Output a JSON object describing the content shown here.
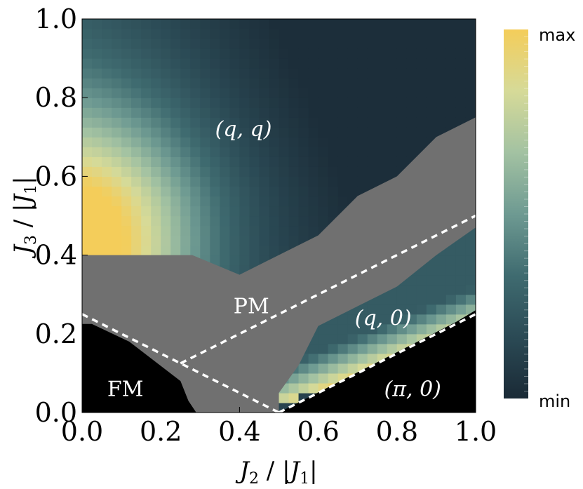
{
  "chart_data": {
    "type": "heatmap",
    "title": "",
    "xlabel": {
      "main": "J",
      "sub": "2",
      "sep": " / |",
      "main2": "J",
      "sub2": "1",
      "end": "|"
    },
    "ylabel": {
      "main": "J",
      "sub": "3",
      "sep": " / |",
      "main2": "J",
      "sub2": "1",
      "end": "|"
    },
    "xlim": [
      0.0,
      1.0
    ],
    "ylim": [
      0.0,
      1.0
    ],
    "x_ticks": [
      {
        "value": 0.0,
        "label": "0.0"
      },
      {
        "value": 0.2,
        "label": "0.2"
      },
      {
        "value": 0.4,
        "label": "0.4"
      },
      {
        "value": 0.6,
        "label": "0.6"
      },
      {
        "value": 0.8,
        "label": "0.8"
      },
      {
        "value": 1.0,
        "label": "1.0"
      }
    ],
    "y_ticks": [
      {
        "value": 0.0,
        "label": "0.0"
      },
      {
        "value": 0.2,
        "label": "0.2"
      },
      {
        "value": 0.4,
        "label": "0.4"
      },
      {
        "value": 0.6,
        "label": "0.6"
      },
      {
        "value": 0.8,
        "label": "0.8"
      },
      {
        "value": 1.0,
        "label": "1.0"
      }
    ],
    "colorbar": {
      "max_label": "max",
      "min_label": "min",
      "colors": [
        "#1a2a36",
        "#2b4a55",
        "#3f6b70",
        "#6e9a92",
        "#a3c2a2",
        "#d6da98",
        "#f4cd5a"
      ]
    },
    "heatmap_grid": {
      "dx": 0.025,
      "dy": 0.025
    },
    "pm_color": "#707070",
    "regions": [
      {
        "name": "PM",
        "label": "PM",
        "color": "#707070",
        "boundary": [
          [
            0,
            0
          ],
          [
            0,
            0.4
          ],
          [
            0.28,
            0.4
          ],
          [
            0.4,
            0.35
          ],
          [
            0.6,
            0.45
          ],
          [
            0.7,
            0.55
          ],
          [
            0.8,
            0.6
          ],
          [
            0.9,
            0.7
          ],
          [
            1.0,
            0.75
          ],
          [
            1.0,
            0.47
          ],
          [
            0.9,
            0.4
          ],
          [
            0.8,
            0.32
          ],
          [
            0.7,
            0.27
          ],
          [
            0.6,
            0.22
          ],
          [
            0.55,
            0.12
          ],
          [
            0.5,
            0.05
          ],
          [
            0.5,
            0
          ],
          [
            0,
            0
          ]
        ]
      },
      {
        "name": "FM",
        "label": "FM",
        "color": "#000000",
        "boundary": [
          [
            0,
            0
          ],
          [
            0,
            0.225
          ],
          [
            0.025,
            0.225
          ],
          [
            0.12,
            0.18
          ],
          [
            0.25,
            0.08
          ],
          [
            0.27,
            0.03
          ],
          [
            0.29,
            0.0
          ]
        ]
      },
      {
        "name": "pi0",
        "label": "(π, 0)",
        "color": "#000000",
        "boundary": [
          [
            0.5,
            0
          ],
          [
            1.0,
            0
          ],
          [
            1.0,
            0.26
          ],
          [
            0.95,
            0.23
          ],
          [
            0.5,
            0.0
          ]
        ]
      }
    ],
    "region_labels": [
      {
        "text": "(q, q)",
        "x": 0.41,
        "y": 0.72
      },
      {
        "text": "PM",
        "x": 0.43,
        "y": 0.27
      },
      {
        "text": "(q, 0)",
        "x": 0.765,
        "y": 0.24
      },
      {
        "text": "FM",
        "x": 0.11,
        "y": 0.06
      },
      {
        "text": "(π, 0)",
        "x": 0.84,
        "y": 0.06
      }
    ],
    "dashed_lines": [
      {
        "points": [
          [
            0,
            0.25
          ],
          [
            0.25,
            0.125
          ],
          [
            0.5,
            0
          ]
        ]
      },
      {
        "points": [
          [
            0.25,
            0.125
          ],
          [
            1.0,
            0.5
          ]
        ]
      },
      {
        "points": [
          [
            0.5,
            0
          ],
          [
            1.0,
            0.25
          ]
        ]
      }
    ]
  }
}
